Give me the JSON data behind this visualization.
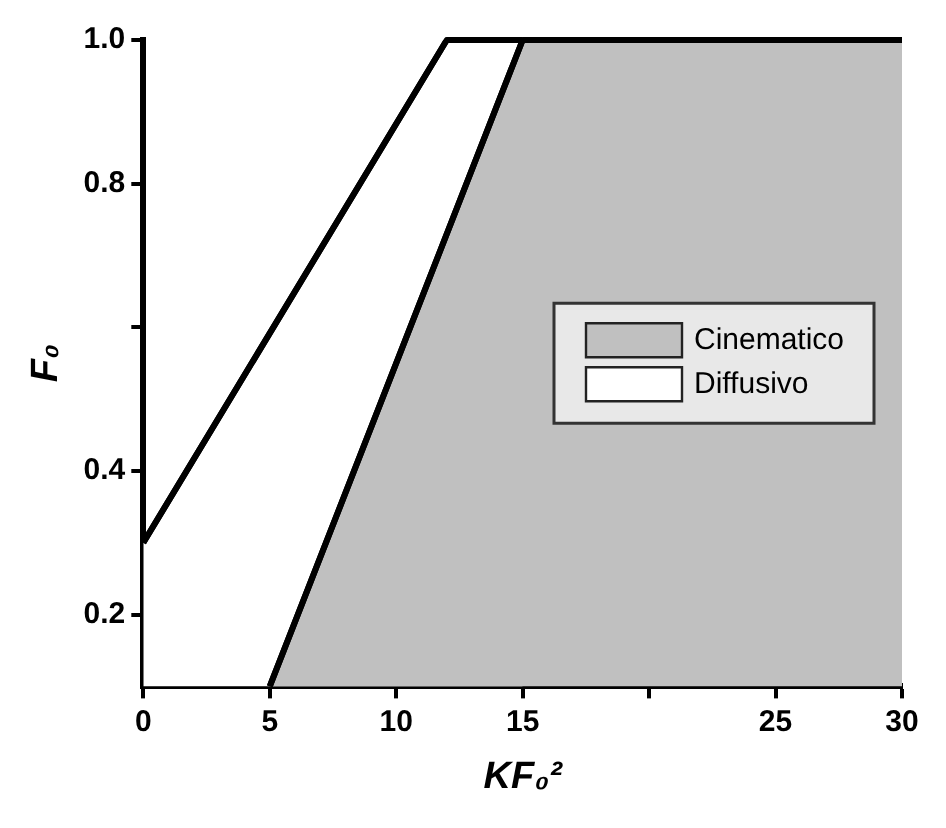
{
  "chart_data": {
    "type": "area",
    "xlabel": "KF₀²",
    "ylabel": "F₀",
    "series": [
      {
        "name": "Cinematico",
        "color": "#c0c0c0",
        "x": [
          5,
          15,
          30
        ],
        "values": [
          0.1,
          1.0,
          1.0
        ]
      },
      {
        "name": "Diffusivo",
        "color": "#ffffff",
        "x": [
          0,
          12,
          15
        ],
        "values": [
          0.3,
          1.0,
          1.0
        ]
      }
    ],
    "xlim": [
      0,
      30
    ],
    "xticks": [
      0,
      5,
      10,
      15,
      {
        "value": 20,
        "label": null
      },
      25,
      30
    ],
    "ylim": [
      0.1,
      1.0
    ],
    "yticks": [
      0.2,
      0.4,
      {
        "value": 0.6,
        "label": null
      },
      0.8,
      {
        "value": 1.0,
        "label": "1.0"
      }
    ],
    "grid": false,
    "legend": "right"
  }
}
